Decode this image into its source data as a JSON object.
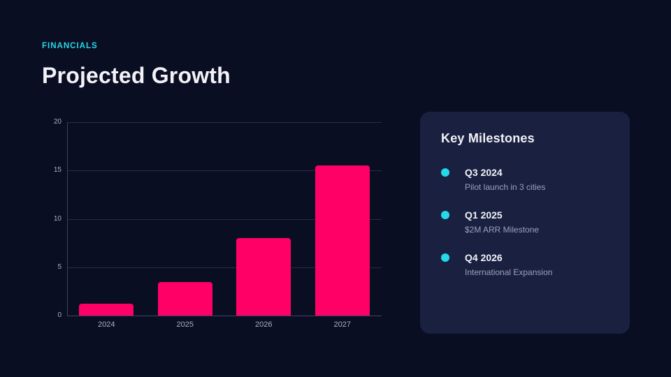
{
  "page": {
    "eyebrow": "FINANCIALS",
    "title": "Projected Growth"
  },
  "colors": {
    "background": "#0a0e23",
    "card_background": "#1a2040",
    "bar_pink": "#ff0067",
    "accent_cyan": "#25d9e8",
    "grid_line": "#262c4b",
    "axis_line": "#3c4263",
    "axis_text": "#a9b0c4",
    "muted_text": "#9aa2b8",
    "title_text": "#f2f2f7"
  },
  "chart_data": {
    "type": "bar",
    "categories": [
      "2024",
      "2025",
      "2026",
      "2027"
    ],
    "values": [
      1.2,
      3.5,
      8,
      15.5
    ],
    "title": "",
    "xlabel": "",
    "ylabel": "",
    "ylim": [
      0,
      20
    ],
    "yticks": [
      0,
      5,
      10,
      15,
      20
    ],
    "grid": true,
    "legend": false,
    "bar_color": "#ff0067"
  },
  "milestones": {
    "title": "Key Milestones",
    "items": [
      {
        "quarter": "Q3 2024",
        "description": "Pilot launch in 3 cities"
      },
      {
        "quarter": "Q1 2025",
        "description": "$2M ARR Milestone"
      },
      {
        "quarter": "Q4 2026",
        "description": "International Expansion"
      }
    ]
  }
}
